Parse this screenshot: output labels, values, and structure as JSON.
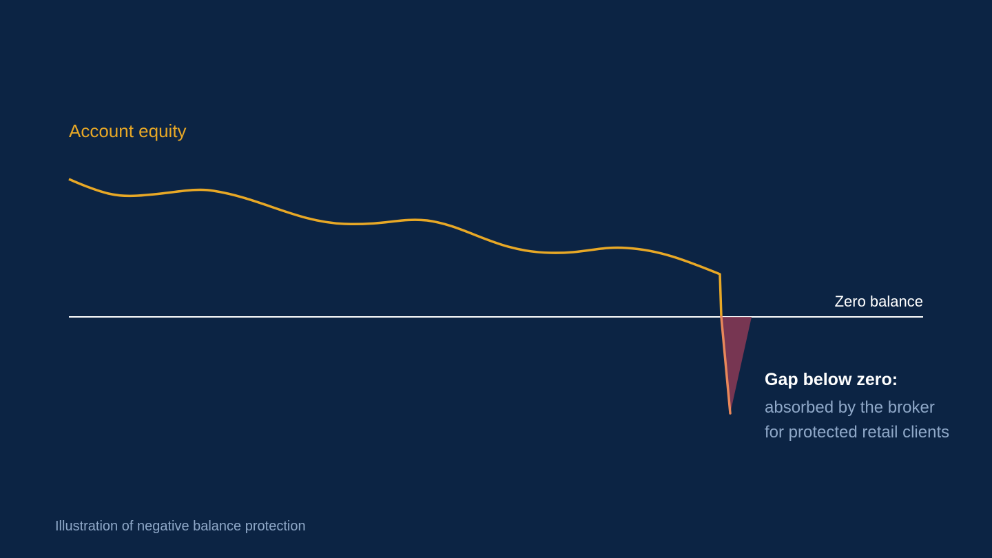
{
  "labels": {
    "series": "Account equity",
    "zero_line": "Zero balance",
    "gap_title": "Gap below zero:",
    "gap_lines": [
      "absorbed by the broker",
      "for protected retail clients"
    ]
  },
  "caption": "Illustration of negative balance protection"
}
